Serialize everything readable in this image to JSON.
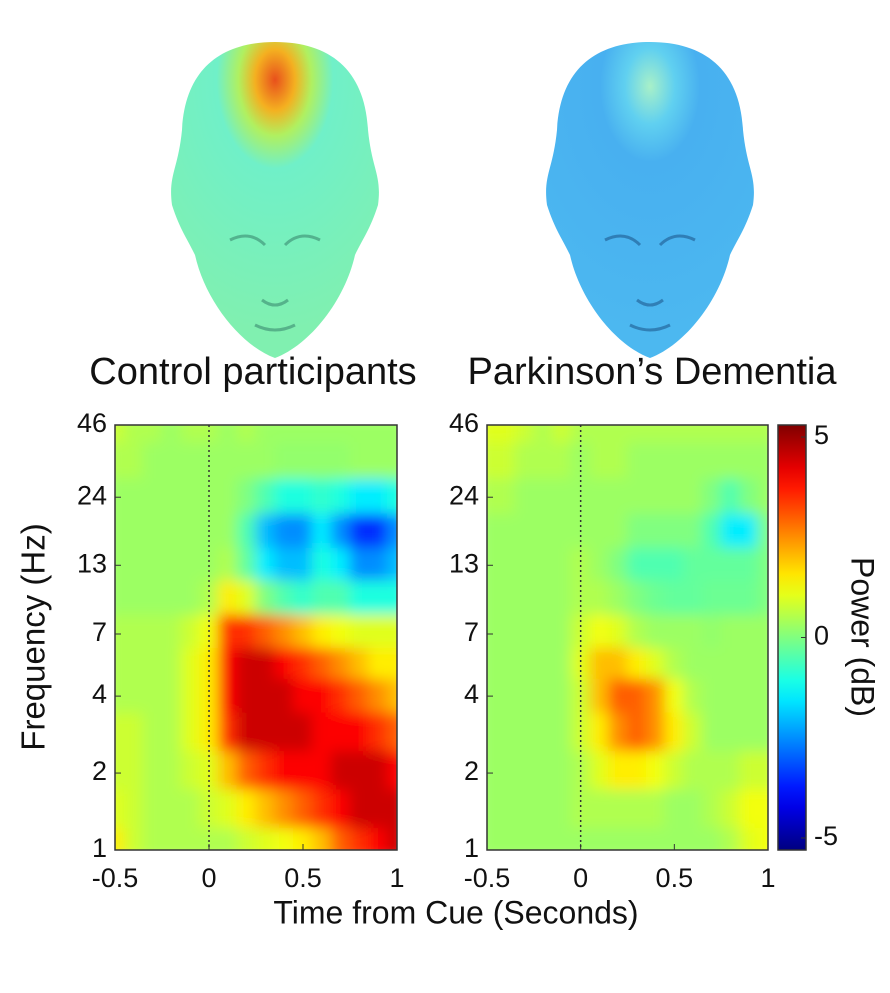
{
  "chart_data": [
    {
      "type": "heatmap",
      "title": "Control participants",
      "title_color": "#0a14d8",
      "ylabel": "Frequency (Hz)",
      "xlabel": "Time from Cue (Seconds)",
      "x": [
        -0.5,
        -0.4,
        -0.3,
        -0.2,
        -0.1,
        0,
        0.1,
        0.2,
        0.3,
        0.4,
        0.5,
        0.6,
        0.7,
        0.8,
        0.9,
        1.0
      ],
      "y": [
        1,
        1.5,
        2,
        3,
        4,
        5.5,
        7,
        10,
        13,
        18,
        24,
        34,
        46
      ],
      "z": [
        [
          1.5,
          0.8,
          0.5,
          0.5,
          0.5,
          0.5,
          0.5,
          0.8,
          1.0,
          1.2,
          1.5,
          2,
          3,
          3.5,
          4,
          4.5
        ],
        [
          1,
          0.8,
          0.5,
          0.5,
          0.5,
          0.8,
          1,
          1.5,
          2,
          2.5,
          3,
          3.5,
          4,
          4.5,
          4.5,
          4.5
        ],
        [
          0.8,
          0.8,
          0.5,
          0.5,
          0.8,
          1,
          2,
          3,
          3.5,
          4,
          4,
          4,
          4.5,
          4.5,
          4.5,
          4
        ],
        [
          0.8,
          0.8,
          0.5,
          0.5,
          1,
          1.5,
          3.5,
          4.5,
          4.5,
          4.5,
          4.5,
          4,
          4,
          4,
          3.5,
          3
        ],
        [
          0.5,
          0.5,
          0.5,
          0.5,
          1,
          1.5,
          4,
          4.5,
          4.5,
          4.5,
          4,
          4,
          3.5,
          3,
          2.5,
          2
        ],
        [
          0.5,
          0.5,
          0.5,
          0.5,
          1,
          1.5,
          4,
          4.5,
          4.5,
          4,
          3.5,
          3,
          2.5,
          2,
          1.5,
          1.5
        ],
        [
          0.5,
          0.5,
          0.5,
          0.5,
          0.8,
          1.2,
          3.5,
          3.5,
          3,
          2.5,
          2,
          1.5,
          1.2,
          1,
          1,
          1
        ],
        [
          0.3,
          0.3,
          0.3,
          0.3,
          0.3,
          0.5,
          1.5,
          1,
          0,
          -0.5,
          -0.8,
          -0.5,
          -0.5,
          -1,
          -1,
          -1
        ],
        [
          0.3,
          0.3,
          0.3,
          0.3,
          0.3,
          0.3,
          0.5,
          -0.3,
          -1.5,
          -2,
          -2,
          -1,
          -1.5,
          -2.5,
          -2.5,
          -2
        ],
        [
          0.3,
          0.3,
          0.3,
          0.3,
          0.3,
          0.3,
          0.3,
          -0.5,
          -2,
          -2.5,
          -2.5,
          -1.5,
          -2.5,
          -3.5,
          -3.5,
          -2.5
        ],
        [
          0.3,
          0.3,
          0.3,
          0.3,
          0.3,
          0.3,
          0.3,
          0,
          -0.5,
          -1,
          -1,
          -0.8,
          -1,
          -1.5,
          -1.5,
          -1
        ],
        [
          0.5,
          0.5,
          0.3,
          0.3,
          0.3,
          0.3,
          0.3,
          0.3,
          0.3,
          0.2,
          0.2,
          0.2,
          0.2,
          0.3,
          0.3,
          0.3
        ],
        [
          0.8,
          0.5,
          0.5,
          0.3,
          0.5,
          0.5,
          0.3,
          0.5,
          0.3,
          0.3,
          0.3,
          0.3,
          0.3,
          0.3,
          0.3,
          0.3
        ]
      ],
      "xlim": [
        -0.5,
        1
      ],
      "xticks": [
        -0.5,
        0,
        0.5,
        1
      ],
      "ylim": [
        1,
        46
      ],
      "yscale": "log",
      "yticks": [
        1,
        2,
        4,
        7,
        13,
        24,
        46
      ],
      "vline": 0,
      "colormap": "jet",
      "clim": [
        -5.3,
        5.3
      ]
    },
    {
      "type": "heatmap",
      "title": "Parkinson’s Dementia",
      "title_color": "#e0321e",
      "colorbar_label": "Power (dB)",
      "cticks": [
        -5,
        0,
        5
      ],
      "x": [
        -0.5,
        -0.4,
        -0.3,
        -0.2,
        -0.1,
        0,
        0.1,
        0.2,
        0.3,
        0.4,
        0.5,
        0.6,
        0.7,
        0.8,
        0.9,
        1.0
      ],
      "y": [
        1,
        1.5,
        2,
        3,
        4,
        5.5,
        7,
        10,
        13,
        18,
        24,
        34,
        46
      ],
      "z": [
        [
          0.3,
          0.3,
          0.3,
          0.3,
          0.3,
          0.3,
          0.3,
          0.3,
          0.3,
          0.3,
          0.3,
          0.3,
          0.3,
          0.5,
          1,
          1.2
        ],
        [
          0.3,
          0.3,
          0.3,
          0.3,
          0.3,
          0.5,
          0.5,
          0.5,
          0.5,
          0.5,
          0.3,
          0.3,
          0.5,
          0.8,
          1.2,
          1.2
        ],
        [
          0.3,
          0.3,
          0.3,
          0.3,
          0.3,
          0.5,
          1,
          1.5,
          1.5,
          1.2,
          0.8,
          0.5,
          0.5,
          0.5,
          0.8,
          0.8
        ],
        [
          0.3,
          0.3,
          0.3,
          0.3,
          0.3,
          0.8,
          1.5,
          2.5,
          3,
          2.5,
          1.5,
          0.8,
          0.3,
          0.3,
          0.3,
          0.3
        ],
        [
          0.3,
          0.3,
          0.3,
          0.3,
          0.3,
          0.8,
          2,
          3,
          3,
          2.5,
          1.2,
          0.5,
          0.3,
          0.3,
          0.3,
          0.3
        ],
        [
          0.3,
          0.3,
          0.3,
          0.3,
          0.3,
          1,
          2,
          2,
          1.5,
          1,
          0.5,
          0.3,
          0.3,
          0.3,
          0.3,
          0.3
        ],
        [
          0.3,
          0.3,
          0.3,
          0.3,
          0.3,
          0.8,
          1.2,
          1,
          0.5,
          0.3,
          0.3,
          0.3,
          0.2,
          0.3,
          0.3,
          0.3
        ],
        [
          0.3,
          0.3,
          0.3,
          0.3,
          0.3,
          0.5,
          0.5,
          0.3,
          0,
          -0.2,
          -0.3,
          -0.3,
          -0.2,
          -0.2,
          -0.2,
          0
        ],
        [
          0.3,
          0.3,
          0.3,
          0.3,
          0.3,
          0.5,
          0.3,
          0,
          -0.5,
          -0.5,
          -0.5,
          -0.3,
          -0.3,
          -0.3,
          -0.3,
          0
        ],
        [
          0.3,
          0.3,
          0.3,
          0.3,
          0.3,
          0.3,
          0.3,
          0.3,
          0,
          0,
          0,
          0,
          -0.5,
          -1.5,
          -1.5,
          0
        ],
        [
          0.5,
          0.5,
          0.3,
          0.3,
          0.3,
          0.3,
          0.3,
          0.3,
          0.3,
          0.3,
          0.3,
          0.3,
          0,
          -0.5,
          0,
          0.3
        ],
        [
          0.8,
          0.8,
          0.5,
          0.5,
          0.5,
          0.3,
          0.5,
          0.5,
          0.3,
          0.3,
          0.3,
          0.3,
          0.3,
          0.3,
          0.3,
          0.3
        ],
        [
          1,
          1,
          0.8,
          0.5,
          0.8,
          0.5,
          0.5,
          0.5,
          0.5,
          0.5,
          0.5,
          0.5,
          0.5,
          0.5,
          0.5,
          0.5
        ]
      ],
      "xlim": [
        -0.5,
        1
      ],
      "xticks": [
        -0.5,
        0,
        0.5,
        1
      ],
      "ylim": [
        1,
        46
      ],
      "yscale": "log",
      "yticks": [
        1,
        2,
        4,
        7,
        13,
        24,
        46
      ],
      "vline": 0,
      "colormap": "jet",
      "clim": [
        -5.3,
        5.3
      ]
    }
  ]
}
